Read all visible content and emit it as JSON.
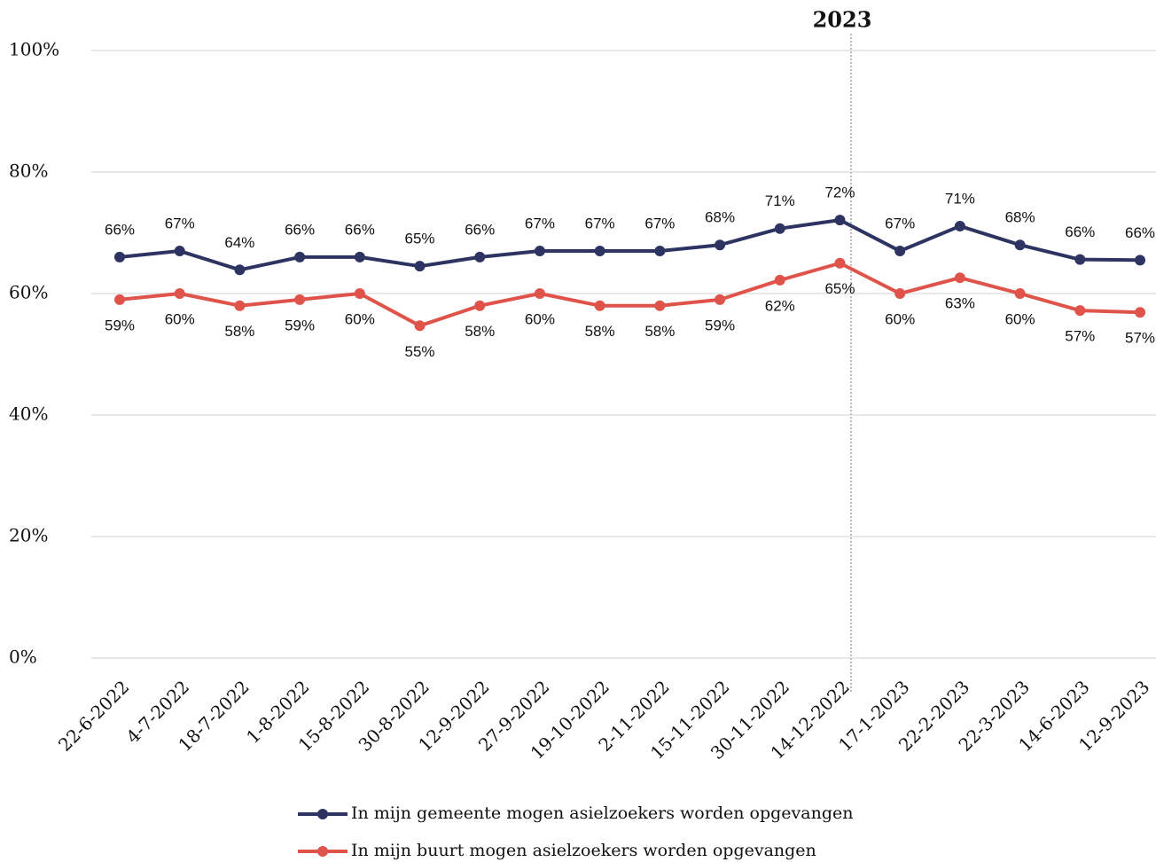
{
  "chart_data": {
    "type": "line",
    "annotation": "2023",
    "categories": [
      "22-6-2022",
      "4-7-2022",
      "18-7-2022",
      "1-8-2022",
      "15-8-2022",
      "30-8-2022",
      "12-9-2022",
      "27-9-2022",
      "19-10-2022",
      "2-11-2022",
      "15-11-2022",
      "30-11-2022",
      "14-12-2022",
      "17-1-2023",
      "22-2-2023",
      "22-3-2023",
      "14-6-2023",
      "12-9-2023"
    ],
    "series": [
      {
        "name": "In mijn gemeente mogen asielzoekers worden opgevangen",
        "color": "#2e3461",
        "values": [
          66,
          67,
          63.9,
          66,
          66,
          64.5,
          66,
          67,
          67,
          67,
          68,
          70.7,
          72.1,
          67,
          71.1,
          68,
          65.6,
          65.5
        ],
        "value_labels": [
          "66%",
          "67%",
          "64%",
          "66%",
          "66%",
          "65%",
          "66%",
          "67%",
          "67%",
          "67%",
          "68%",
          "71%",
          "72%",
          "67%",
          "71%",
          "68%",
          "66%",
          "66%"
        ]
      },
      {
        "name": "In mijn buurt mogen asielzoekers worden opgevangen",
        "color": "#e0534a",
        "values": [
          59,
          60,
          58,
          59,
          60,
          54.7,
          58,
          60,
          58,
          58,
          59,
          62.2,
          65,
          60,
          62.6,
          60,
          57.2,
          56.9
        ],
        "value_labels": [
          "59%",
          "60%",
          "58%",
          "59%",
          "60%",
          "55%",
          "58%",
          "60%",
          "58%",
          "58%",
          "59%",
          "62%",
          "65%",
          "60%",
          "63%",
          "60%",
          "57%",
          "57%"
        ]
      }
    ],
    "ylim": [
      0,
      100
    ],
    "yticks": [
      {
        "value": 0,
        "label": "0%"
      },
      {
        "value": 20,
        "label": "20%"
      },
      {
        "value": 40,
        "label": "40%"
      },
      {
        "value": 60,
        "label": "60%"
      },
      {
        "value": 80,
        "label": "80%"
      },
      {
        "value": 100,
        "label": "100%"
      }
    ],
    "grid": true
  }
}
